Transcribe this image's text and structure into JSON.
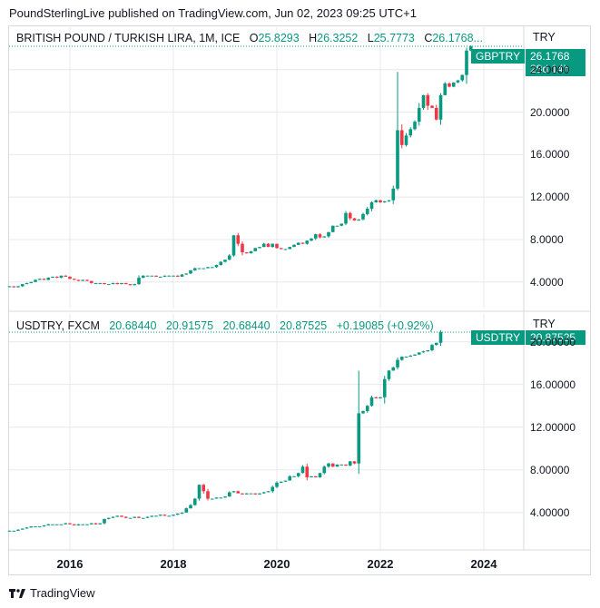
{
  "header": {
    "published": "PoundSterlingLive published on TradingView.com, Jun 02, 2023 09:25 UTC+1"
  },
  "footer": {
    "brand": "TradingView"
  },
  "colors": {
    "up": "#089981",
    "down": "#f23645",
    "grid": "#e6e8ee"
  },
  "x_axis": {
    "ticks": [
      "2016",
      "2018",
      "2020",
      "2022",
      "2024"
    ]
  },
  "chart_data": [
    {
      "type": "candlestick",
      "name": "BRITISH POUND / TURKISH LIRA, 1M, ICE",
      "symbol": "GBPTRY",
      "currency": "TRY",
      "ohlc_labels": {
        "o_label": "O",
        "o": "25.8293",
        "h_label": "H",
        "h": "26.3252",
        "l_label": "L",
        "l": "25.7773",
        "c_label": "C",
        "c": "26.1768..."
      },
      "last_price": "26.1768",
      "countdown": "28d 14h",
      "y_ticks": [
        "24.0000",
        "20.0000",
        "16.0000",
        "12.0000",
        "8.0000",
        "4.0000"
      ],
      "y_tick_values": [
        24,
        20,
        16,
        12,
        8,
        4
      ],
      "ylim": [
        1.5,
        28.0
      ],
      "x_start": "2014-11",
      "x_end": "2023-06",
      "closes": [
        3.6,
        3.5,
        3.6,
        3.8,
        3.9,
        4.0,
        4.2,
        4.3,
        4.2,
        4.4,
        4.5,
        4.4,
        4.6,
        4.5,
        4.3,
        4.2,
        4.1,
        4.2,
        4.1,
        3.9,
        3.9,
        3.9,
        3.8,
        3.8,
        3.9,
        3.8,
        3.9,
        3.8,
        3.7,
        3.8,
        4.4,
        4.6,
        4.6,
        4.6,
        4.5,
        4.5,
        4.6,
        4.6,
        4.6,
        4.5,
        4.7,
        4.8,
        5.1,
        5.3,
        5.3,
        5.3,
        5.4,
        5.4,
        5.6,
        5.9,
        6.1,
        6.5,
        8.4,
        7.6,
        6.8,
        6.7,
        6.9,
        7.2,
        7.3,
        7.6,
        7.3,
        7.6,
        7.2,
        7.1,
        7.1,
        7.3,
        7.5,
        7.7,
        7.6,
        7.9,
        8.1,
        8.5,
        8.2,
        8.3,
        8.7,
        9.3,
        9.3,
        9.5,
        10.5,
        10.0,
        9.8,
        9.9,
        10.4,
        10.9,
        11.5,
        11.7,
        11.5,
        11.6,
        11.7,
        12.8,
        18.3,
        16.9,
        17.8,
        18.4,
        19.1,
        20.4,
        21.6,
        20.6,
        20.4,
        19.3,
        21.6,
        22.7,
        22.4,
        22.8,
        23.0,
        23.5,
        25.8,
        26.2
      ]
    },
    {
      "type": "candlestick",
      "name": "USDTRY, FXCM",
      "symbol": "USDTRY",
      "currency": "TRY",
      "ohlc_labels": {
        "o": "20.68440",
        "h": "20.91575",
        "l": "20.68440",
        "c": "20.87525",
        "change": "+0.19085",
        "change_pct": "(+0.92%)"
      },
      "last_price": "20.87525",
      "y_ticks": [
        "20.00000",
        "16.00000",
        "12.00000",
        "8.00000",
        "4.00000"
      ],
      "y_tick_values": [
        20,
        16,
        12,
        8,
        4
      ],
      "ylim": [
        0.5,
        22.6
      ],
      "x_start": "2014-11",
      "x_end": "2023-06",
      "closes": [
        2.3,
        2.3,
        2.4,
        2.5,
        2.6,
        2.7,
        2.7,
        2.7,
        2.8,
        2.9,
        2.9,
        2.9,
        2.9,
        3.0,
        2.9,
        2.8,
        2.9,
        2.9,
        2.9,
        3.0,
        2.9,
        3.0,
        3.4,
        3.5,
        3.6,
        3.7,
        3.6,
        3.5,
        3.5,
        3.6,
        3.5,
        3.5,
        3.6,
        3.7,
        3.7,
        3.8,
        3.7,
        3.7,
        3.8,
        3.9,
        4.0,
        4.4,
        4.7,
        5.3,
        6.6,
        6.0,
        5.3,
        5.3,
        5.4,
        5.4,
        5.5,
        5.9,
        6.0,
        5.8,
        5.7,
        5.8,
        5.8,
        5.7,
        5.8,
        5.9,
        6.0,
        6.4,
        6.8,
        6.9,
        7.0,
        7.4,
        7.4,
        7.7,
        8.3,
        7.3,
        7.4,
        7.3,
        7.7,
        8.3,
        8.6,
        8.3,
        8.5,
        8.5,
        8.4,
        8.8,
        8.6,
        13.3,
        13.5,
        14.0,
        14.8,
        14.7,
        14.8,
        16.5,
        17.3,
        17.6,
        18.3,
        18.6,
        18.6,
        18.7,
        18.8,
        19.0,
        19.1,
        19.2,
        19.7,
        19.9,
        20.9
      ]
    }
  ]
}
